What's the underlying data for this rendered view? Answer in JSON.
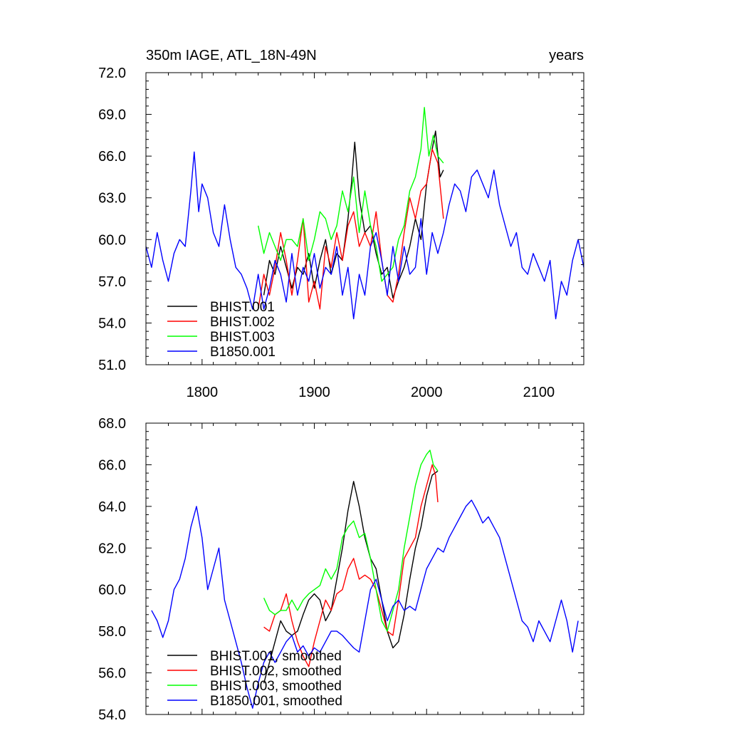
{
  "chart_data": [
    {
      "type": "line",
      "title": "350m IAGE, ATL_18N-49N",
      "title_right": "years",
      "xlabel": "",
      "ylabel": "",
      "xlim": [
        1750,
        2140
      ],
      "ylim": [
        51.0,
        72.0
      ],
      "xticks": [
        1800,
        1900,
        2000,
        2100
      ],
      "xtick_labels": [
        "1800",
        "1900",
        "2000",
        "2100"
      ],
      "yticks": [
        51.0,
        54.0,
        57.0,
        60.0,
        63.0,
        66.0,
        69.0,
        72.0
      ],
      "ytick_labels": [
        "51.0",
        "54.0",
        "57.0",
        "60.0",
        "63.0",
        "66.0",
        "69.0",
        "72.0"
      ],
      "grid": false,
      "legend_position": "bottom-left",
      "series": [
        {
          "name": "BHIST.001",
          "color": "#000000",
          "x": [
            1855,
            1860,
            1865,
            1870,
            1875,
            1880,
            1885,
            1890,
            1895,
            1900,
            1905,
            1910,
            1915,
            1920,
            1925,
            1930,
            1933,
            1936,
            1940,
            1945,
            1950,
            1955,
            1960,
            1965,
            1970,
            1975,
            1980,
            1985,
            1990,
            1995,
            2000,
            2005,
            2008,
            2012,
            2015
          ],
          "y": [
            56.0,
            58.5,
            57.5,
            59.5,
            58.0,
            56.5,
            58.0,
            57.5,
            59.0,
            56.5,
            58.5,
            60.0,
            57.5,
            59.0,
            58.5,
            61.5,
            64.0,
            67.0,
            63.0,
            60.5,
            61.0,
            59.0,
            57.5,
            58.0,
            55.8,
            57.0,
            58.0,
            59.5,
            61.5,
            60.0,
            64.0,
            66.5,
            67.8,
            64.5,
            65.0
          ]
        },
        {
          "name": "BHIST.002",
          "color": "#ff0000",
          "x": [
            1850,
            1855,
            1860,
            1865,
            1870,
            1875,
            1880,
            1885,
            1890,
            1895,
            1900,
            1905,
            1910,
            1915,
            1920,
            1925,
            1930,
            1935,
            1940,
            1945,
            1950,
            1955,
            1960,
            1965,
            1970,
            1975,
            1980,
            1985,
            1990,
            1995,
            2000,
            2005,
            2010,
            2015
          ],
          "y": [
            55.0,
            57.5,
            56.0,
            58.0,
            60.5,
            58.5,
            56.0,
            58.5,
            61.5,
            55.5,
            57.0,
            55.0,
            59.5,
            58.0,
            60.5,
            58.5,
            61.0,
            62.0,
            59.5,
            60.5,
            59.5,
            62.0,
            58.5,
            56.0,
            55.5,
            57.5,
            60.5,
            63.0,
            61.5,
            63.5,
            64.0,
            66.5,
            65.5,
            61.5
          ]
        },
        {
          "name": "BHIST.003",
          "color": "#00ff00",
          "x": [
            1850,
            1855,
            1860,
            1865,
            1870,
            1875,
            1880,
            1885,
            1890,
            1895,
            1900,
            1905,
            1910,
            1915,
            1920,
            1925,
            1930,
            1935,
            1940,
            1945,
            1950,
            1955,
            1960,
            1965,
            1970,
            1975,
            1980,
            1985,
            1990,
            1995,
            1998,
            2002,
            2006,
            2010,
            2015
          ],
          "y": [
            61.0,
            59.0,
            60.5,
            59.5,
            58.5,
            60.0,
            60.0,
            59.5,
            61.5,
            58.5,
            60.0,
            62.0,
            61.5,
            60.0,
            61.0,
            63.5,
            62.0,
            64.5,
            60.5,
            63.5,
            61.0,
            59.5,
            57.0,
            57.5,
            58.0,
            60.0,
            61.0,
            63.5,
            64.5,
            66.5,
            69.5,
            66.0,
            67.5,
            66.0,
            65.5
          ]
        },
        {
          "name": "B1850.001",
          "color": "#0000ff",
          "x": [
            1750,
            1755,
            1760,
            1765,
            1770,
            1775,
            1780,
            1785,
            1790,
            1793,
            1797,
            1800,
            1805,
            1810,
            1815,
            1820,
            1825,
            1830,
            1835,
            1840,
            1845,
            1850,
            1855,
            1860,
            1865,
            1870,
            1875,
            1880,
            1885,
            1890,
            1895,
            1900,
            1905,
            1910,
            1915,
            1920,
            1925,
            1930,
            1935,
            1940,
            1945,
            1950,
            1955,
            1960,
            1965,
            1970,
            1975,
            1980,
            1985,
            1990,
            1995,
            2000,
            2005,
            2010,
            2015,
            2020,
            2025,
            2030,
            2035,
            2040,
            2045,
            2050,
            2055,
            2060,
            2065,
            2070,
            2075,
            2080,
            2085,
            2090,
            2095,
            2100,
            2105,
            2110,
            2115,
            2120,
            2125,
            2130,
            2135,
            2140
          ],
          "y": [
            59.5,
            58.0,
            60.5,
            58.5,
            57.0,
            59.0,
            60.0,
            59.5,
            63.5,
            66.3,
            62.0,
            64.0,
            63.0,
            60.5,
            59.5,
            62.5,
            60.0,
            58.0,
            57.5,
            56.5,
            55.0,
            57.5,
            55.0,
            56.5,
            58.5,
            57.5,
            55.5,
            59.0,
            56.0,
            58.0,
            57.0,
            59.0,
            56.5,
            58.0,
            57.5,
            59.5,
            56.0,
            58.0,
            54.3,
            57.5,
            56.0,
            59.5,
            60.5,
            58.5,
            56.0,
            59.5,
            57.0,
            59.5,
            57.5,
            58.0,
            61.5,
            57.5,
            60.5,
            59.0,
            60.5,
            62.5,
            64.0,
            63.5,
            62.0,
            64.5,
            65.0,
            64.0,
            63.0,
            65.0,
            62.5,
            61.0,
            59.5,
            60.5,
            58.0,
            57.5,
            59.0,
            58.0,
            57.0,
            58.5,
            54.3,
            57.0,
            56.0,
            58.5,
            60.0,
            58.0
          ]
        }
      ],
      "legend": [
        {
          "label": "BHIST.001",
          "color": "#000000"
        },
        {
          "label": "BHIST.002",
          "color": "#ff0000"
        },
        {
          "label": "BHIST.003",
          "color": "#00ff00"
        },
        {
          "label": "B1850.001",
          "color": "#0000ff"
        }
      ]
    },
    {
      "type": "line",
      "title": "",
      "xlabel": "",
      "ylabel": "",
      "xlim": [
        1750,
        2140
      ],
      "ylim": [
        54.0,
        68.0
      ],
      "xticks": [
        1800,
        1900,
        2000,
        2100
      ],
      "xtick_labels": [
        "",
        "",
        "",
        ""
      ],
      "yticks": [
        54.0,
        56.0,
        58.0,
        60.0,
        62.0,
        64.0,
        66.0,
        68.0
      ],
      "ytick_labels": [
        "54.0",
        "56.0",
        "58.0",
        "60.0",
        "62.0",
        "64.0",
        "66.0",
        "68.0"
      ],
      "grid": false,
      "legend_position": "bottom-left",
      "series": [
        {
          "name": "BHIST.001, smoothed",
          "color": "#000000",
          "x": [
            1855,
            1860,
            1865,
            1870,
            1875,
            1880,
            1885,
            1890,
            1895,
            1900,
            1905,
            1910,
            1915,
            1920,
            1925,
            1930,
            1935,
            1940,
            1945,
            1950,
            1955,
            1960,
            1965,
            1970,
            1975,
            1980,
            1985,
            1990,
            1995,
            2000,
            2005,
            2010
          ],
          "y": [
            55.5,
            56.5,
            57.5,
            58.5,
            58.0,
            57.8,
            58.0,
            58.8,
            59.5,
            59.8,
            59.5,
            58.5,
            59.0,
            60.5,
            62.0,
            63.8,
            65.2,
            64.0,
            62.5,
            61.5,
            61.0,
            59.5,
            58.0,
            57.2,
            57.5,
            58.8,
            60.5,
            62.0,
            63.0,
            64.5,
            65.5,
            65.7
          ]
        },
        {
          "name": "BHIST.002, smoothed",
          "color": "#ff0000",
          "x": [
            1855,
            1860,
            1865,
            1870,
            1875,
            1880,
            1885,
            1890,
            1895,
            1900,
            1905,
            1910,
            1915,
            1920,
            1925,
            1930,
            1935,
            1940,
            1945,
            1950,
            1955,
            1960,
            1965,
            1970,
            1975,
            1980,
            1985,
            1990,
            1995,
            2000,
            2005,
            2008,
            2010
          ],
          "y": [
            58.2,
            58.0,
            58.8,
            59.0,
            59.8,
            58.5,
            57.5,
            56.8,
            56.3,
            57.5,
            58.5,
            59.5,
            59.0,
            59.8,
            60.0,
            61.0,
            61.5,
            60.5,
            60.7,
            60.5,
            60.0,
            59.0,
            58.0,
            57.8,
            59.5,
            61.5,
            62.0,
            62.5,
            64.0,
            65.0,
            66.0,
            65.5,
            64.2
          ]
        },
        {
          "name": "BHIST.003, smoothed",
          "color": "#00ff00",
          "x": [
            1855,
            1860,
            1865,
            1870,
            1875,
            1880,
            1885,
            1890,
            1895,
            1900,
            1905,
            1910,
            1915,
            1920,
            1925,
            1930,
            1935,
            1940,
            1945,
            1950,
            1955,
            1960,
            1965,
            1970,
            1975,
            1980,
            1985,
            1990,
            1995,
            2000,
            2003,
            2006,
            2010
          ],
          "y": [
            59.6,
            59.0,
            58.8,
            59.0,
            59.0,
            59.5,
            59.0,
            59.5,
            59.8,
            60.0,
            60.2,
            61.0,
            60.5,
            61.0,
            62.5,
            63.0,
            63.3,
            62.5,
            62.7,
            61.5,
            60.0,
            58.5,
            58.0,
            59.0,
            60.0,
            62.0,
            63.5,
            65.0,
            66.0,
            66.5,
            66.7,
            66.0,
            65.7
          ]
        },
        {
          "name": "B1850.001, smoothed",
          "color": "#0000ff",
          "x": [
            1755,
            1760,
            1765,
            1770,
            1775,
            1780,
            1785,
            1790,
            1795,
            1800,
            1805,
            1810,
            1815,
            1820,
            1825,
            1830,
            1835,
            1840,
            1845,
            1850,
            1855,
            1860,
            1865,
            1870,
            1875,
            1880,
            1885,
            1890,
            1895,
            1900,
            1905,
            1910,
            1915,
            1920,
            1925,
            1930,
            1935,
            1940,
            1945,
            1950,
            1955,
            1960,
            1965,
            1970,
            1975,
            1980,
            1985,
            1990,
            1995,
            2000,
            2005,
            2010,
            2015,
            2020,
            2025,
            2030,
            2035,
            2040,
            2045,
            2050,
            2055,
            2060,
            2065,
            2070,
            2075,
            2080,
            2085,
            2090,
            2095,
            2100,
            2105,
            2110,
            2115,
            2120,
            2125,
            2130,
            2135
          ],
          "y": [
            59.0,
            58.5,
            57.7,
            58.5,
            60.0,
            60.5,
            61.5,
            63.0,
            64.0,
            62.5,
            60.0,
            61.0,
            62.0,
            59.5,
            58.5,
            57.5,
            56.5,
            55.3,
            54.3,
            55.5,
            56.5,
            57.0,
            56.5,
            57.0,
            57.5,
            57.8,
            57.0,
            57.3,
            56.8,
            57.2,
            57.0,
            57.5,
            58.0,
            58.0,
            57.8,
            57.5,
            57.2,
            57.0,
            58.5,
            60.0,
            60.5,
            59.5,
            58.5,
            59.2,
            59.5,
            59.0,
            59.2,
            59.0,
            60.0,
            61.0,
            61.5,
            62.0,
            61.8,
            62.5,
            63.0,
            63.5,
            64.0,
            64.3,
            63.8,
            63.2,
            63.5,
            63.0,
            62.5,
            61.5,
            60.5,
            59.5,
            58.5,
            58.2,
            57.5,
            58.5,
            58.0,
            57.5,
            58.5,
            59.5,
            58.5,
            57.0,
            58.5
          ]
        }
      ],
      "legend": [
        {
          "label": "BHIST.001, smoothed",
          "color": "#000000"
        },
        {
          "label": "BHIST.002, smoothed",
          "color": "#ff0000"
        },
        {
          "label": "BHIST.003, smoothed",
          "color": "#00ff00"
        },
        {
          "label": "B1850.001, smoothed",
          "color": "#0000ff"
        }
      ]
    }
  ]
}
